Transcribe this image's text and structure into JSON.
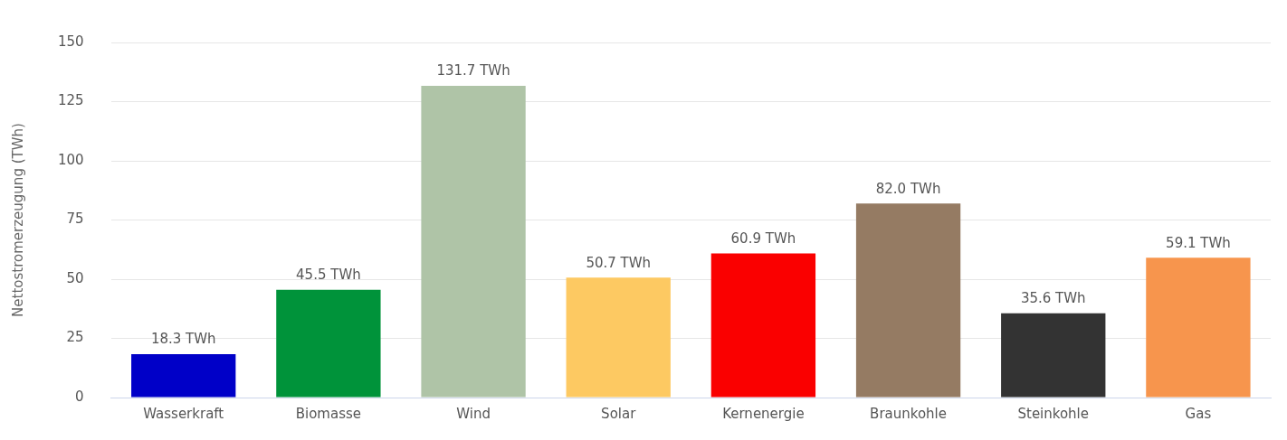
{
  "chart_data": {
    "type": "bar",
    "ylabel": "Nettostromerzeugung (TWh)",
    "categories": [
      "Wasserkraft",
      "Biomasse",
      "Wind",
      "Solar",
      "Kernenergie",
      "Braunkohle",
      "Steinkohle",
      "Gas"
    ],
    "values": [
      18.3,
      45.5,
      131.7,
      50.7,
      60.9,
      82.0,
      35.6,
      59.1
    ],
    "colors": [
      "#0000c8",
      "#00933a",
      "#afc4a7",
      "#fdc962",
      "#fa0000",
      "#957b63",
      "#333333",
      "#f7954d"
    ],
    "value_labels": [
      "18.3 TWh",
      "45.5 TWh",
      "131.7 TWh",
      "50.7 TWh",
      "60.9 TWh",
      "82.0 TWh",
      "35.6 TWh",
      "59.1 TWh"
    ],
    "ylim": [
      0,
      150
    ],
    "yticks": [
      0,
      25,
      50,
      75,
      100,
      125,
      150
    ],
    "grid": "y",
    "legend": false
  }
}
